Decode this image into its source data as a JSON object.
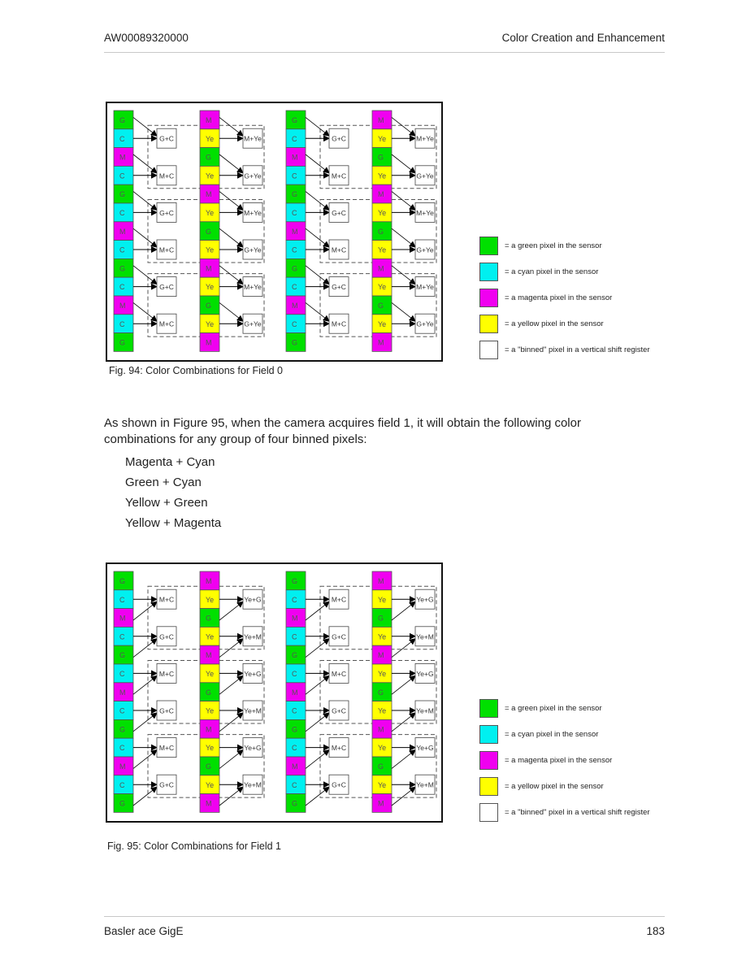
{
  "header": {
    "left": "AW00089320000",
    "right": "Color Creation and Enhancement"
  },
  "colors": {
    "G": "#00e000",
    "C": "#00f0f0",
    "M": "#f000f0",
    "Ye": "#ffff00",
    "binned": "#ffffff"
  },
  "figures": [
    {
      "caption": "Fig. 94: Color Combinations for Field 0",
      "columns": [
        {
          "cells": [
            "G",
            "C",
            "M",
            "C",
            "G",
            "C",
            "M",
            "C",
            "G",
            "C",
            "M",
            "C",
            "G"
          ],
          "boxes": [
            "G+C",
            "M+C",
            "G+C",
            "M+C",
            "G+C",
            "M+C"
          ],
          "source_offset": -1
        },
        {
          "cells": [
            "M",
            "Ye",
            "G",
            "Ye",
            "M",
            "Ye",
            "G",
            "Ye",
            "M",
            "Ye",
            "G",
            "Ye",
            "M"
          ],
          "boxes": [
            "M+Ye",
            "G+Ye",
            "M+Ye",
            "G+Ye",
            "M+Ye",
            "G+Ye"
          ],
          "source_offset": -1
        },
        {
          "cells": [
            "G",
            "C",
            "M",
            "C",
            "G",
            "C",
            "M",
            "C",
            "G",
            "C",
            "M",
            "C",
            "G"
          ],
          "boxes": [
            "G+C",
            "M+C",
            "G+C",
            "M+C",
            "G+C",
            "M+C"
          ],
          "source_offset": -1
        },
        {
          "cells": [
            "M",
            "Ye",
            "G",
            "Ye",
            "M",
            "Ye",
            "G",
            "Ye",
            "M",
            "Ye",
            "G",
            "Ye",
            "M"
          ],
          "boxes": [
            "M+Ye",
            "G+Ye",
            "M+Ye",
            "G+Ye",
            "M+Ye",
            "G+Ye"
          ],
          "source_offset": -1
        }
      ]
    },
    {
      "caption": "Fig. 95: Color Combinations for Field 1",
      "columns": [
        {
          "cells": [
            "G",
            "C",
            "M",
            "C",
            "G",
            "C",
            "M",
            "C",
            "G",
            "C",
            "M",
            "C",
            "G"
          ],
          "boxes": [
            "M+C",
            "G+C",
            "M+C",
            "G+C",
            "M+C",
            "G+C"
          ],
          "source_offset": 1
        },
        {
          "cells": [
            "M",
            "Ye",
            "G",
            "Ye",
            "M",
            "Ye",
            "G",
            "Ye",
            "M",
            "Ye",
            "G",
            "Ye",
            "M"
          ],
          "boxes": [
            "Ye+G",
            "Ye+M",
            "Ye+G",
            "Ye+M",
            "Ye+G",
            "Ye+M"
          ],
          "source_offset": 1
        },
        {
          "cells": [
            "G",
            "C",
            "M",
            "C",
            "G",
            "C",
            "M",
            "C",
            "G",
            "C",
            "M",
            "C",
            "G"
          ],
          "boxes": [
            "M+C",
            "G+C",
            "M+C",
            "G+C",
            "M+C",
            "G+C"
          ],
          "source_offset": 1
        },
        {
          "cells": [
            "M",
            "Ye",
            "G",
            "Ye",
            "M",
            "Ye",
            "G",
            "Ye",
            "M",
            "Ye",
            "G",
            "Ye",
            "M"
          ],
          "boxes": [
            "Ye+G",
            "Ye+M",
            "Ye+G",
            "Ye+M",
            "Ye+G",
            "Ye+M"
          ],
          "source_offset": 1
        }
      ]
    }
  ],
  "legend": [
    {
      "key": "G",
      "text": "= a green pixel in the sensor"
    },
    {
      "key": "C",
      "text": "= a cyan pixel in the sensor"
    },
    {
      "key": "M",
      "text": "= a magenta pixel in the sensor"
    },
    {
      "key": "Ye",
      "text": "= a yellow pixel in the sensor"
    },
    {
      "key": "binned",
      "text": "= a \"binned\" pixel in a vertical shift register"
    }
  ],
  "paragraph": {
    "line1": "As shown in Figure 95, when the camera acquires field 1, it will obtain the following color",
    "line2": "combinations for any group of four binned pixels:"
  },
  "list": [
    "Magenta + Cyan",
    "Green + Cyan",
    "Yellow + Green",
    "Yellow + Magenta"
  ],
  "footer": {
    "left": "Basler ace GigE",
    "right": "183"
  }
}
